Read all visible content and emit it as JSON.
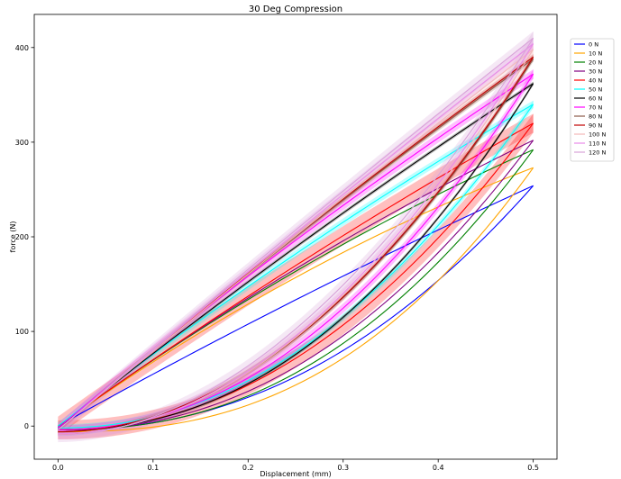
{
  "chart_data": {
    "type": "line",
    "title": "30 Deg Compression",
    "xlabel": "Displacement (mm)",
    "ylabel": "force (N)",
    "xlim": [
      -0.025,
      0.525
    ],
    "ylim": [
      -35,
      435
    ],
    "xticks": [
      0.0,
      0.1,
      0.2,
      0.3,
      0.4,
      0.5
    ],
    "xtick_labels": [
      "0.0",
      "0.1",
      "0.2",
      "0.3",
      "0.4",
      "0.5"
    ],
    "yticks": [
      0,
      100,
      200,
      300,
      400
    ],
    "ytick_labels": [
      "0",
      "100",
      "200",
      "300",
      "400"
    ],
    "grid": false,
    "legend_position": "upper-right",
    "x_max": 0.5,
    "note_hysteresis": "each series has a loading branch (lower) and unloading branch (upper)",
    "series": [
      {
        "name": "0 N",
        "color": "#0000ff",
        "peak": 254,
        "upper_end": 0,
        "upper_curve": 0.05,
        "lower_start": -4,
        "lower_exp": 2.2,
        "band": 0
      },
      {
        "name": "10 N",
        "color": "#ffa500",
        "peak": 273,
        "upper_end": 0,
        "upper_curve": 0.15,
        "lower_start": -6,
        "lower_exp": 2.5,
        "band": 0
      },
      {
        "name": "20 N",
        "color": "#008000",
        "peak": 292,
        "upper_end": 0,
        "upper_curve": 0.12,
        "lower_start": -4,
        "lower_exp": 2.3,
        "band": 0
      },
      {
        "name": "30 N",
        "color": "#800080",
        "peak": 302,
        "upper_end": 0,
        "upper_curve": 0.1,
        "lower_start": -4,
        "lower_exp": 2.2,
        "band": 0
      },
      {
        "name": "40 N",
        "color": "#ff0000",
        "peak": 320,
        "upper_end": 0,
        "upper_curve": 0.06,
        "lower_start": -4,
        "lower_exp": 2.1,
        "band": 10
      },
      {
        "name": "50 N",
        "color": "#00ffff",
        "peak": 340,
        "upper_end": 0,
        "upper_curve": 0.07,
        "lower_start": -2,
        "lower_exp": 2.1,
        "band": 4
      },
      {
        "name": "60 N",
        "color": "#000000",
        "peak": 362,
        "upper_end": -2,
        "upper_curve": 0.05,
        "lower_start": -4,
        "lower_exp": 2.2,
        "band": 2
      },
      {
        "name": "70 N",
        "color": "#ff00ff",
        "peak": 372,
        "upper_end": -2,
        "upper_curve": 0.06,
        "lower_start": -4,
        "lower_exp": 2.1,
        "band": 5
      },
      {
        "name": "80 N",
        "color": "#8b5a4a",
        "peak": 388,
        "upper_end": -4,
        "upper_curve": 0.04,
        "lower_start": -6,
        "lower_exp": 2.0,
        "band": 3
      },
      {
        "name": "90 N",
        "color": "#c00000",
        "peak": 390,
        "upper_end": -4,
        "upper_curve": 0.04,
        "lower_start": -6,
        "lower_exp": 2.0,
        "band": 3
      },
      {
        "name": "100 N",
        "color": "#f2b8b8",
        "peak": 398,
        "upper_end": -4,
        "upper_curve": 0.02,
        "lower_start": -8,
        "lower_exp": 2.0,
        "band": 6
      },
      {
        "name": "110 N",
        "color": "#e88ae8",
        "peak": 404,
        "upper_end": -4,
        "upper_curve": 0.02,
        "lower_start": -8,
        "lower_exp": 2.0,
        "band": 6
      },
      {
        "name": "120 N",
        "color": "#d9a3d9",
        "peak": 410,
        "upper_end": -4,
        "upper_curve": 0.02,
        "lower_start": -10,
        "lower_exp": 1.9,
        "band": 7
      }
    ]
  }
}
